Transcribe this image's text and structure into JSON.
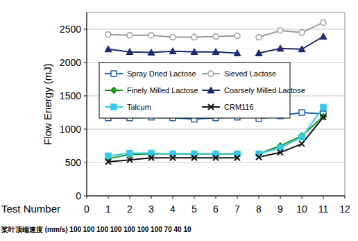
{
  "chart_data": {
    "type": "line",
    "x_label": "Test Number",
    "y_label": "Flow Energy (mJ)",
    "annotations": [
      "桨叶顶端速度 (mm/s) 100 100 100 100 100 100 100 70 40 10"
    ],
    "x": [
      1,
      2,
      3,
      4,
      5,
      6,
      7,
      7.5,
      8,
      9,
      10,
      11
    ],
    "series": [
      {
        "name": "Spray Dried Lactose",
        "color": "#1f63b0",
        "marker": "square-open",
        "values": [
          1170,
          1170,
          1180,
          1170,
          1150,
          1170,
          1180,
          null,
          1160,
          1200,
          1250,
          1230
        ]
      },
      {
        "name": "Sieved Lactose",
        "color": "#999999",
        "marker": "circle-open",
        "values": [
          2420,
          2410,
          2410,
          2380,
          2380,
          2390,
          2400,
          null,
          2380,
          2480,
          2450,
          2600
        ]
      },
      {
        "name": "Finely Milled Lactose",
        "color": "#1a9a1a",
        "marker": "diamond",
        "values": [
          560,
          620,
          630,
          630,
          630,
          630,
          630,
          null,
          630,
          750,
          900,
          1190
        ]
      },
      {
        "name": "Coarsely Milled Lactose",
        "color": "#1c2a6e",
        "marker": "triangle",
        "values": [
          2200,
          2160,
          2150,
          2170,
          2160,
          2160,
          2140,
          null,
          2140,
          2210,
          2200,
          2390
        ]
      },
      {
        "name": "Talcum",
        "color": "#38c8ea",
        "marker": "square",
        "values": [
          600,
          640,
          640,
          630,
          630,
          630,
          630,
          null,
          630,
          720,
          880,
          1330
        ]
      },
      {
        "name": "CRM116",
        "color": "#111111",
        "marker": "x",
        "values": [
          510,
          540,
          570,
          570,
          570,
          570,
          570,
          null,
          580,
          650,
          780,
          1180
        ]
      }
    ],
    "xlim": [
      0,
      12
    ],
    "xticks": [
      0,
      1,
      2,
      3,
      4,
      5,
      6,
      7,
      8,
      9,
      10,
      11,
      12
    ],
    "ylim": [
      0,
      2750
    ],
    "yticks": [
      0,
      500,
      1000,
      1500,
      2000,
      2500
    ],
    "grid": true,
    "legend": "upper center"
  }
}
